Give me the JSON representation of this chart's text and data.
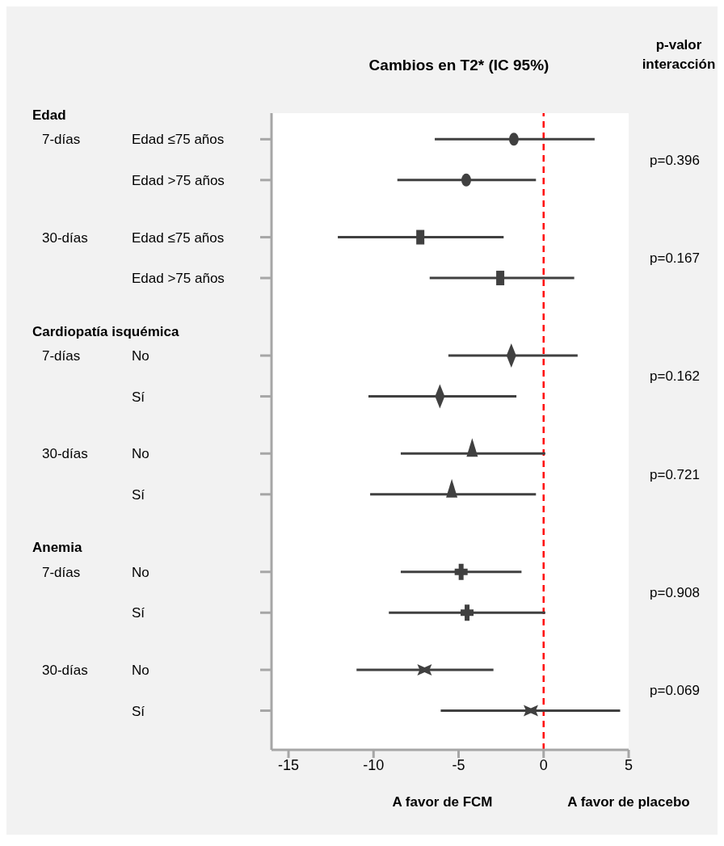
{
  "chart_data": {
    "type": "scatter",
    "orientation": "horizontal",
    "title": "Cambios en T2* (IC 95%)",
    "categories": [
      "Edad ≤75 años",
      "Edad >75 años",
      "Edad ≤75 años",
      "Edad >75 años",
      "No",
      "Sí",
      "No",
      "Sí",
      "No",
      "Sí",
      "No",
      "Sí"
    ],
    "series": [
      {
        "color": "#404040",
        "marker": "circle",
        "values": [
          -1.75,
          -4.55,
          null,
          null,
          null,
          null,
          null,
          null,
          null,
          null,
          null,
          null
        ],
        "errors": [
          [
            -6.4,
            3.0
          ],
          [
            -8.6,
            -0.45
          ],
          null,
          null,
          null,
          null,
          null,
          null,
          null,
          null,
          null,
          null
        ]
      },
      {
        "color": "#404040",
        "marker": "square",
        "values": [
          null,
          null,
          -7.25,
          -2.55,
          null,
          null,
          null,
          null,
          null,
          null,
          null,
          null
        ],
        "errors": [
          null,
          null,
          [
            -12.1,
            -2.35
          ],
          [
            -6.7,
            1.8
          ],
          null,
          null,
          null,
          null,
          null,
          null,
          null,
          null
        ]
      },
      {
        "color": "#404040",
        "marker": "diamond",
        "values": [
          null,
          null,
          null,
          null,
          -1.9,
          -6.1,
          null,
          null,
          null,
          null,
          null,
          null
        ],
        "errors": [
          null,
          null,
          null,
          null,
          [
            -5.6,
            2.0
          ],
          [
            -10.3,
            -1.6
          ],
          null,
          null,
          null,
          null,
          null,
          null
        ]
      },
      {
        "color": "#404040",
        "marker": "triangle",
        "values": [
          null,
          null,
          null,
          null,
          null,
          null,
          -4.2,
          -5.4,
          null,
          null,
          null,
          null
        ],
        "errors": [
          null,
          null,
          null,
          null,
          null,
          null,
          [
            -8.4,
            0.1
          ],
          [
            -10.2,
            -0.45
          ],
          null,
          null,
          null,
          null
        ]
      },
      {
        "color": "#404040",
        "marker": "cross",
        "values": [
          null,
          null,
          null,
          null,
          null,
          null,
          null,
          null,
          -4.85,
          -4.5,
          null,
          null
        ],
        "errors": [
          null,
          null,
          null,
          null,
          null,
          null,
          null,
          null,
          [
            -8.4,
            -1.3
          ],
          [
            -9.1,
            0.1
          ],
          null,
          null
        ]
      },
      {
        "color": "#404040",
        "marker": "star",
        "values": [
          null,
          null,
          null,
          null,
          null,
          null,
          null,
          null,
          null,
          null,
          -7.0,
          -0.75
        ],
        "errors": [
          null,
          null,
          null,
          null,
          null,
          null,
          null,
          null,
          null,
          null,
          [
            -11.0,
            -2.95
          ],
          [
            -6.05,
            4.5
          ]
        ]
      }
    ],
    "xlim": [
      -16,
      5
    ],
    "xticks": [
      -15,
      -10,
      -5,
      0,
      5
    ],
    "ref_lines": [
      {
        "axis": "x",
        "value": 0,
        "color": "#ff0000",
        "line_style": "dashed"
      }
    ],
    "annotations": [
      "Edad",
      "7-días",
      "30-días",
      "Cardiopatía isquémica",
      "7-días",
      "30-días",
      "Anemia",
      "7-días",
      "30-días",
      "p-valor interacción",
      "p=0.396",
      "p=0.167",
      "p=0.162",
      "p=0.721",
      "p=0.908",
      "p=0.069",
      "A favor de FCM",
      "A favor de placebo"
    ]
  }
}
